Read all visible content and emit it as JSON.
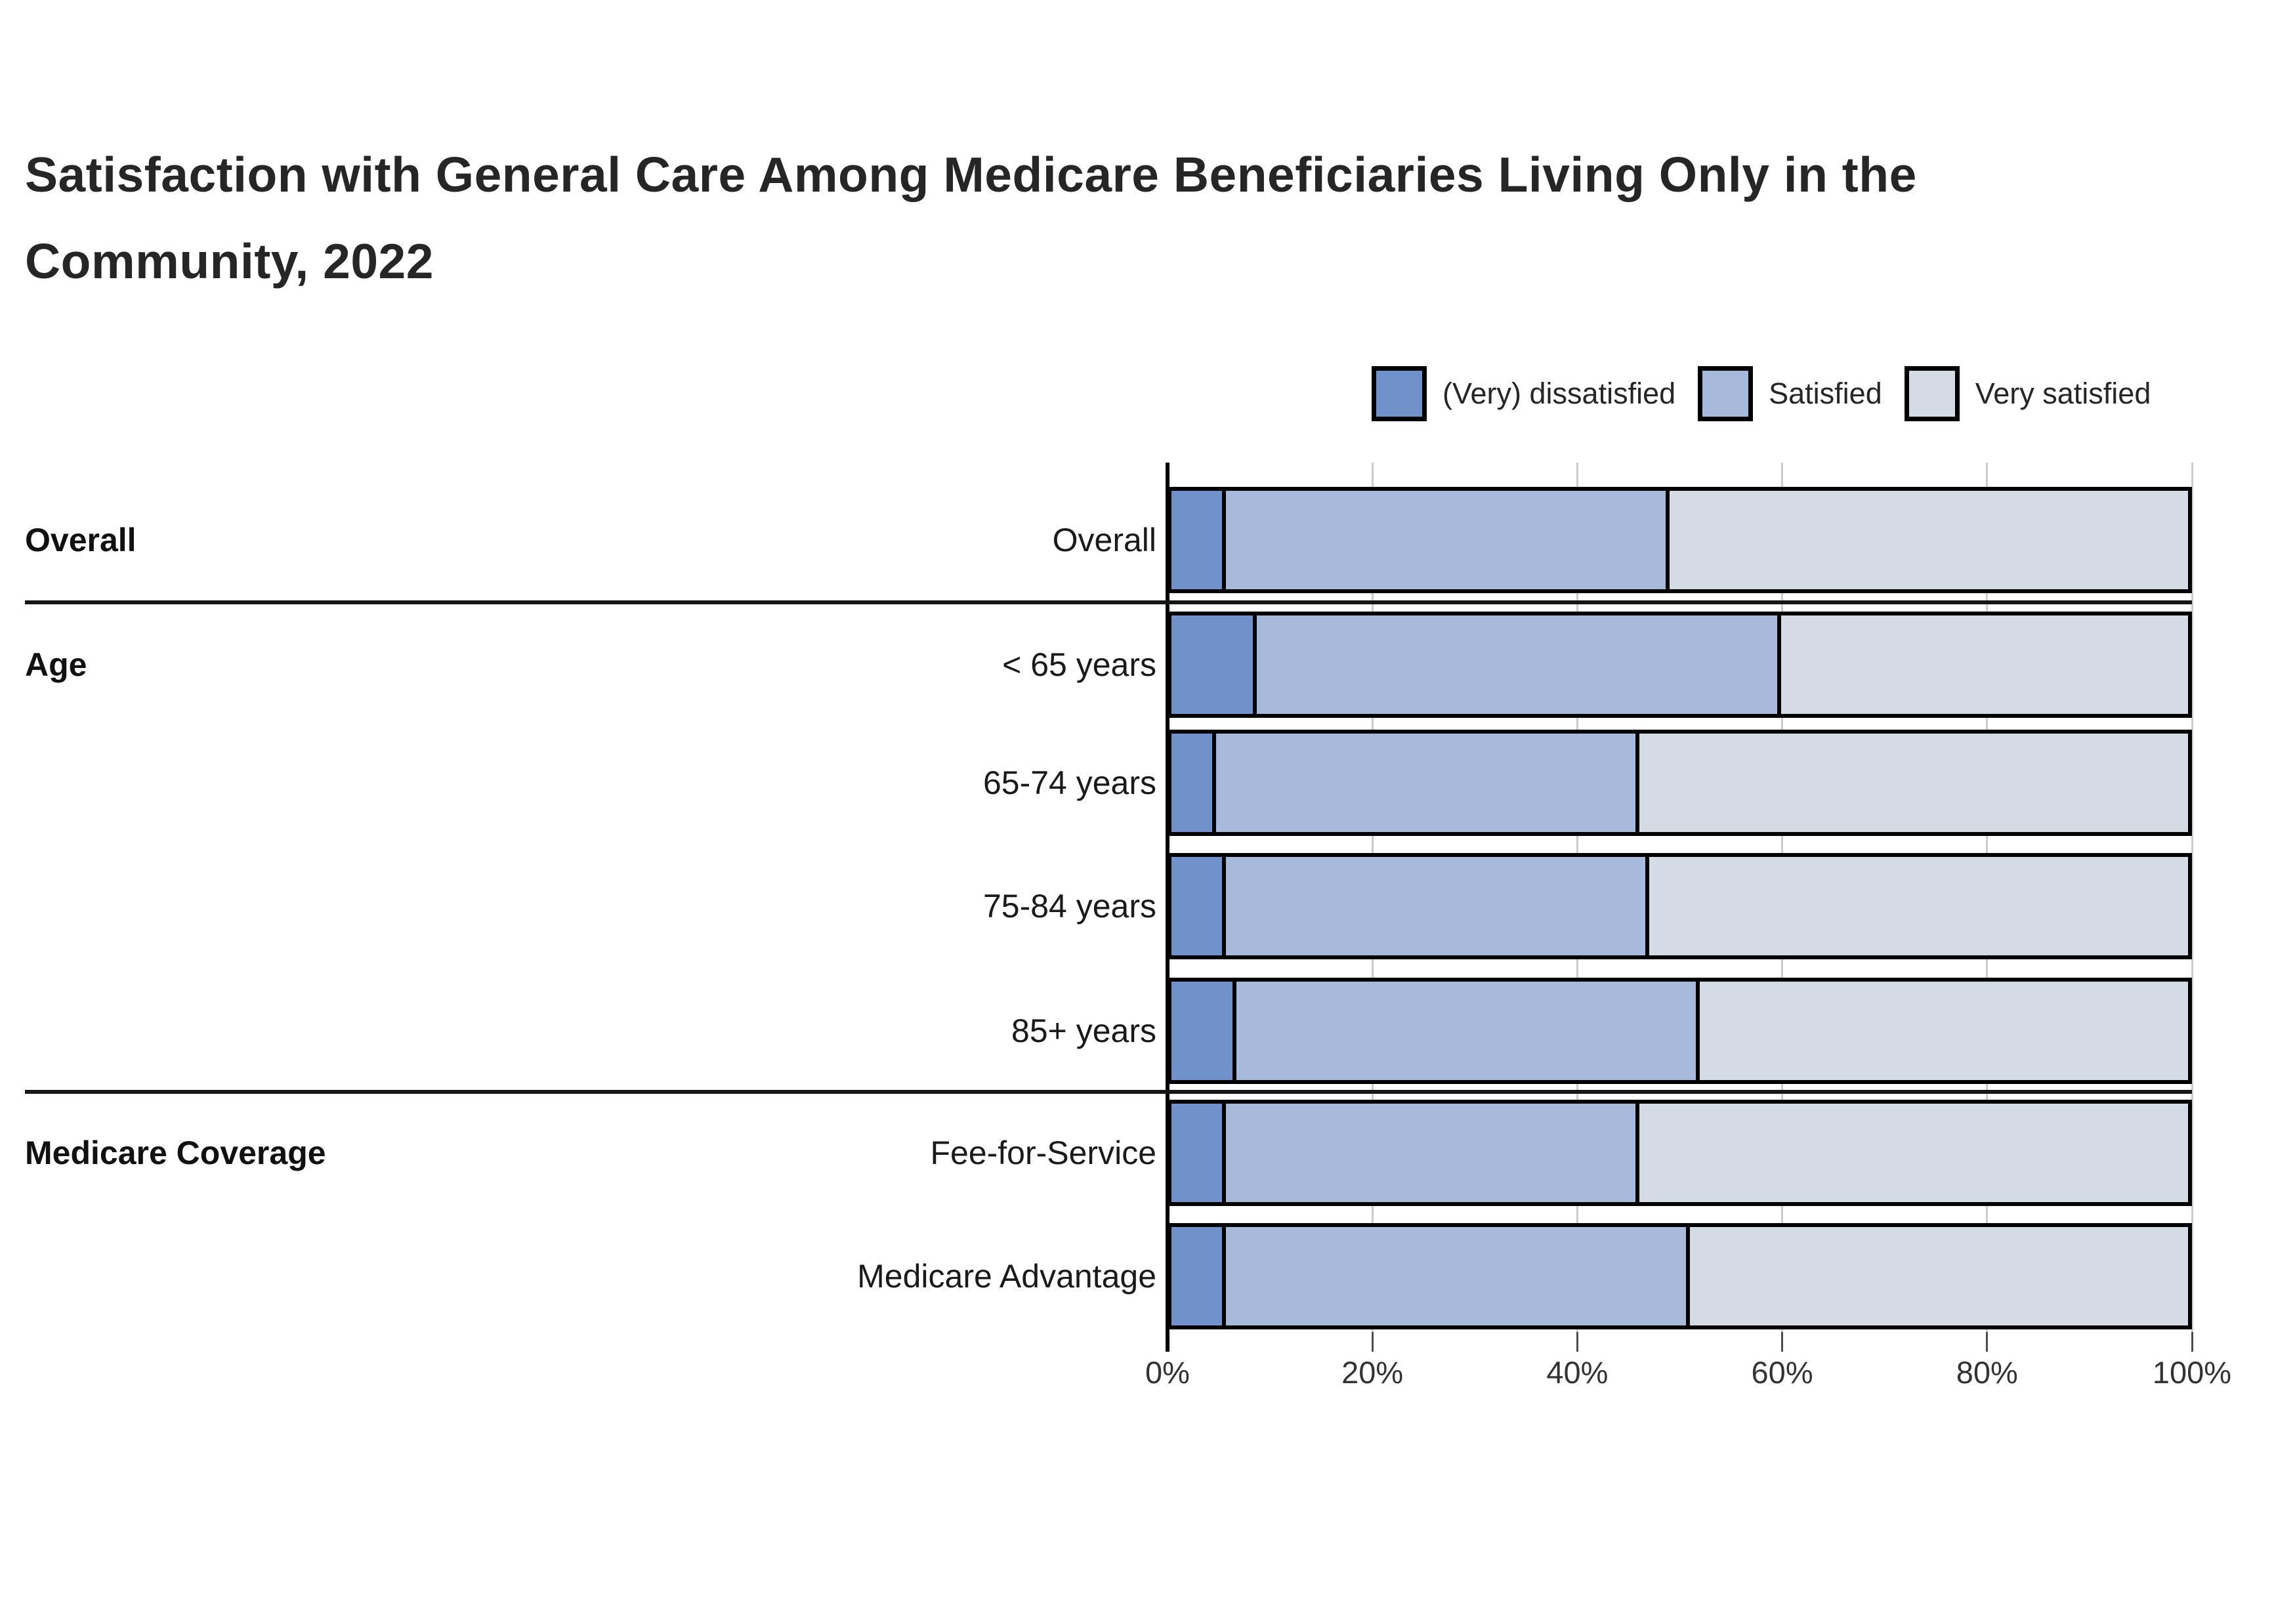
{
  "title": {
    "text": "Satisfaction with General Care Among Medicare Beneficiaries Living Only in the Community, 2022",
    "lines": [
      "Satisfaction with General Care Among Medicare Beneficiaries Living Only in the",
      "Community, 2022"
    ]
  },
  "legend": {
    "position": "top-right",
    "items": [
      {
        "label": "(Very) dissatisfied",
        "color": "#7191cb"
      },
      {
        "label": "Satisfied",
        "color": "#a7badb"
      },
      {
        "label": "Very satisfied",
        "color": "#d4dbe5"
      }
    ]
  },
  "chart_data": {
    "type": "bar",
    "orientation": "horizontal",
    "stacked": true,
    "stack_total": 100,
    "title": "Satisfaction with General Care Among Medicare Beneficiaries Living Only in the Community, 2022",
    "categories": [
      "Overall",
      "< 65 years",
      "65-74 years",
      "75-84 years",
      "85+ years",
      "Fee-for-Service",
      "Medicare Advantage"
    ],
    "groups": [
      {
        "label": "Overall",
        "rows": [
          "Overall"
        ]
      },
      {
        "label": "Age",
        "rows": [
          "< 65 years",
          "65-74 years",
          "75-84 years",
          "85+ years"
        ]
      },
      {
        "label": "Medicare Coverage",
        "rows": [
          "Fee-for-Service",
          "Medicare Advantage"
        ]
      }
    ],
    "series": [
      {
        "name": "(Very) dissatisfied",
        "color": "#7191cb",
        "values": [
          5,
          8,
          4,
          5,
          6,
          5,
          5
        ]
      },
      {
        "name": "Satisfied",
        "color": "#a7badb",
        "values": [
          44,
          52,
          42,
          42,
          46,
          41,
          46
        ]
      },
      {
        "name": "Very satisfied",
        "color": "#d4dbe5",
        "values": [
          51,
          40,
          54,
          53,
          48,
          54,
          49
        ]
      }
    ],
    "xlabel": "",
    "ylabel": "",
    "xlim": [
      0,
      100
    ],
    "x_ticks": [
      "0%",
      "20%",
      "40%",
      "60%",
      "80%",
      "100%"
    ],
    "grid": true,
    "legend_position": "top-right",
    "bar_border_color": "#000000",
    "gridline_color": "#cccccc"
  }
}
